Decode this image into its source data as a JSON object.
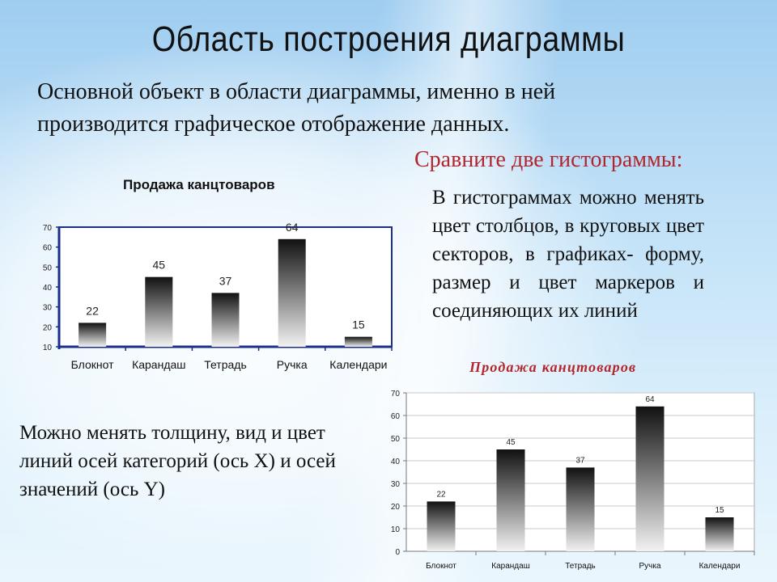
{
  "slide": {
    "title": "Область построения  диаграммы",
    "subtitle_line1": "Основной объект в области диаграммы, именно в ней",
    "subtitle_line2": "производится графическое отображение данных.",
    "compare_heading": "Сравните две гистограммы:",
    "paragraph_right": "В гистограммах можно менять цвет столбцов, в круговых цвет секторов, в графиках- форму, размер и цвет маркеров и соединяющих их линий",
    "paragraph_left": "Можно менять толщину, вид и цвет линий  осей категорий (ось X) и осей значений (ось Y)"
  },
  "chart_data": [
    {
      "type": "bar",
      "title": "Продажа канцтоваров",
      "categories": [
        "Блокнот",
        "Карандаш",
        "Тетрадь",
        "Ручка",
        "Календари"
      ],
      "values": [
        22,
        45,
        37,
        64,
        15
      ],
      "value_labels": [
        "22",
        "45",
        "37",
        "64",
        "15"
      ],
      "y_ticks": [
        "10",
        "20",
        "30",
        "40",
        "50",
        "60",
        "70"
      ],
      "ylim": [
        10,
        70
      ],
      "grid": false,
      "legend": "none",
      "bar_gradient": [
        "#111111",
        "#f2f2f2"
      ],
      "axis_color": "#1a2e8c"
    },
    {
      "type": "bar",
      "title": "Продажа канцтоваров",
      "categories": [
        "Блокнот",
        "Карандаш",
        "Тетрадь",
        "Ручка",
        "Календари"
      ],
      "values": [
        22,
        45,
        37,
        64,
        15
      ],
      "value_labels": [
        "22",
        "45",
        "37",
        "64",
        "15"
      ],
      "y_ticks": [
        "0",
        "10",
        "20",
        "30",
        "40",
        "50",
        "60",
        "70"
      ],
      "ylim": [
        0,
        70
      ],
      "grid": true,
      "legend": "none",
      "bar_gradient": [
        "#111111",
        "#f2f2f2"
      ],
      "title_color": "#b2262e"
    }
  ]
}
